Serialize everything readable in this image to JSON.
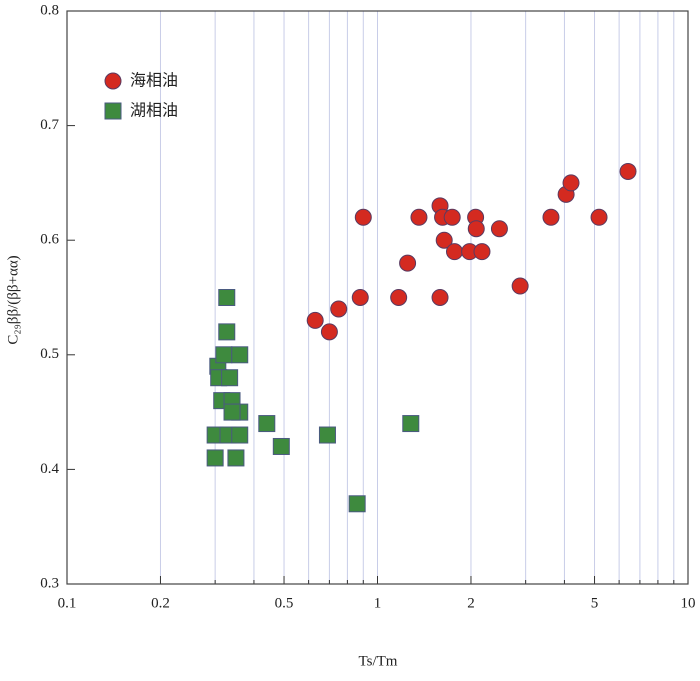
{
  "chart_data": {
    "type": "scatter",
    "xlabel": "Ts/Tm",
    "ylabel": "C₂₉ββ/(ββ+αα)",
    "xscale": "log",
    "xlim": [
      0.1,
      10
    ],
    "ylim": [
      0.3,
      0.8
    ],
    "xticks": [
      0.1,
      0.2,
      0.5,
      1,
      2,
      5,
      10
    ],
    "xgrid": [
      0.3,
      0.4,
      0.6,
      0.7,
      0.8,
      0.9,
      3,
      4,
      6,
      7,
      8,
      9
    ],
    "yticks": [
      0.3,
      0.4,
      0.5,
      0.6,
      0.7,
      0.8
    ],
    "legend": "upper left",
    "series": [
      {
        "name": "海相油",
        "color": "#d42a20",
        "marker": "circle",
        "x": [
          0.63,
          0.7,
          0.75,
          0.9,
          0.88,
          1.17,
          1.25,
          1.36,
          1.59,
          1.62,
          1.74,
          1.64,
          1.59,
          1.77,
          1.98,
          2.07,
          2.08,
          2.17,
          2.47,
          2.88,
          3.62,
          4.05,
          4.2,
          5.17,
          6.41
        ],
        "values": [
          0.53,
          0.52,
          0.54,
          0.62,
          0.55,
          0.55,
          0.58,
          0.62,
          0.63,
          0.62,
          0.62,
          0.6,
          0.55,
          0.59,
          0.59,
          0.62,
          0.61,
          0.59,
          0.61,
          0.56,
          0.62,
          0.64,
          0.65,
          0.62,
          0.66
        ]
      },
      {
        "name": "湖相油",
        "color": "#3e8a3e",
        "marker": "square",
        "x": [
          0.327,
          0.327,
          0.306,
          0.308,
          0.32,
          0.36,
          0.334,
          0.315,
          0.34,
          0.36,
          0.34,
          0.3,
          0.33,
          0.36,
          0.3,
          0.35,
          0.44,
          0.49,
          0.69,
          0.86,
          1.28
        ],
        "values": [
          0.55,
          0.52,
          0.49,
          0.48,
          0.5,
          0.5,
          0.48,
          0.46,
          0.46,
          0.45,
          0.45,
          0.43,
          0.43,
          0.43,
          0.41,
          0.41,
          0.44,
          0.42,
          0.43,
          0.37,
          0.44
        ]
      }
    ]
  }
}
